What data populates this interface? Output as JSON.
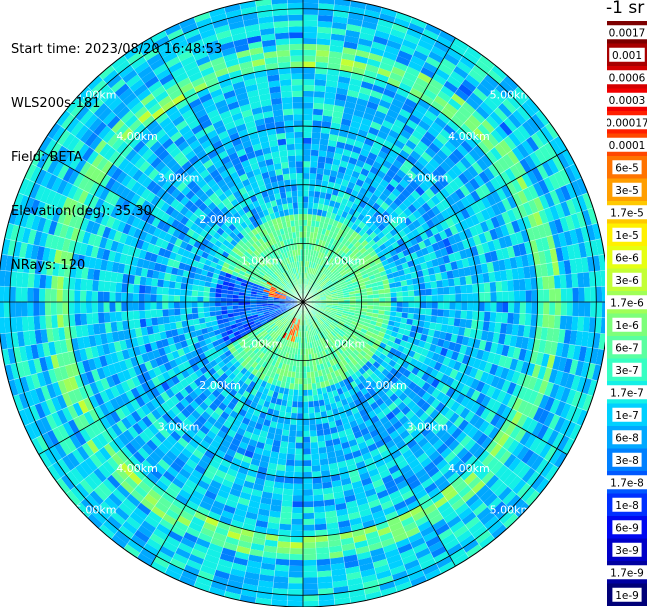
{
  "header": {
    "start_time": "Start time: 2023/08/20 16:48:53",
    "instrument": "WLS200s-181",
    "field": "Field: BETA",
    "elevation": "Elevation(deg): 35.30",
    "nrays": "NRays: 120"
  },
  "colorbar": {
    "unit_label": "-1 sr",
    "labels": [
      "0.0017",
      "0.001",
      "0.0006",
      "0.0003",
      "0.00017",
      "0.0001",
      "6e-5",
      "3e-5",
      "1.7e-5",
      "1e-5",
      "6e-6",
      "3e-6",
      "1.7e-6",
      "1e-6",
      "6e-7",
      "3e-7",
      "1.7e-7",
      "1e-7",
      "6e-8",
      "3e-8",
      "1.7e-8",
      "1e-8",
      "6e-9",
      "3e-9",
      "1.7e-9",
      "1e-9"
    ],
    "colors": [
      "#7d0000",
      "#a80000",
      "#d40000",
      "#f20000",
      "#ff1e00",
      "#ff4800",
      "#ff7300",
      "#ff9e00",
      "#ffc800",
      "#fff000",
      "#e6ff12",
      "#c3ff35",
      "#a0ff57",
      "#7dff7a",
      "#5affa0",
      "#37ffc3",
      "#14f0e6",
      "#00d0ff",
      "#00a8ff",
      "#0080ff",
      "#0058ff",
      "#0030ff",
      "#0008f0",
      "#0000c8",
      "#0000a0",
      "#000078"
    ]
  },
  "chart_data": {
    "type": "polar-ppi",
    "title": "",
    "field": "BETA",
    "units": "sr-1",
    "n_rays": 120,
    "elevation_deg": 35.3,
    "range_rings_km": [
      1,
      2,
      3,
      4,
      5
    ],
    "range_ring_labels": [
      "1.00km",
      "2.00km",
      "3.00km",
      "4.00km",
      "5.00km"
    ],
    "max_range_km": 5.2,
    "azimuth_gridlines_deg": [
      0,
      30,
      60,
      90,
      120,
      150,
      180,
      210,
      240,
      270,
      300,
      330
    ],
    "color_scale": "log",
    "color_range": [
      1e-09,
      0.0017
    ],
    "background_level": "1e-8 to 3e-7",
    "features": [
      {
        "description": "strong echoes near center",
        "azimuth_deg": [
          190,
          300
        ],
        "range_km": [
          0.3,
          0.7
        ],
        "level": "1e-5 to 1e-4"
      },
      {
        "description": "enhanced ring",
        "range_km": [
          4.0,
          4.4
        ],
        "level": "1e-6 to 1e-5"
      },
      {
        "description": "low-signal wedge",
        "azimuth_deg": [
          240,
          290
        ],
        "range_km": [
          0.2,
          1.5
        ],
        "level": "1e-9 to 1e-8"
      }
    ]
  }
}
